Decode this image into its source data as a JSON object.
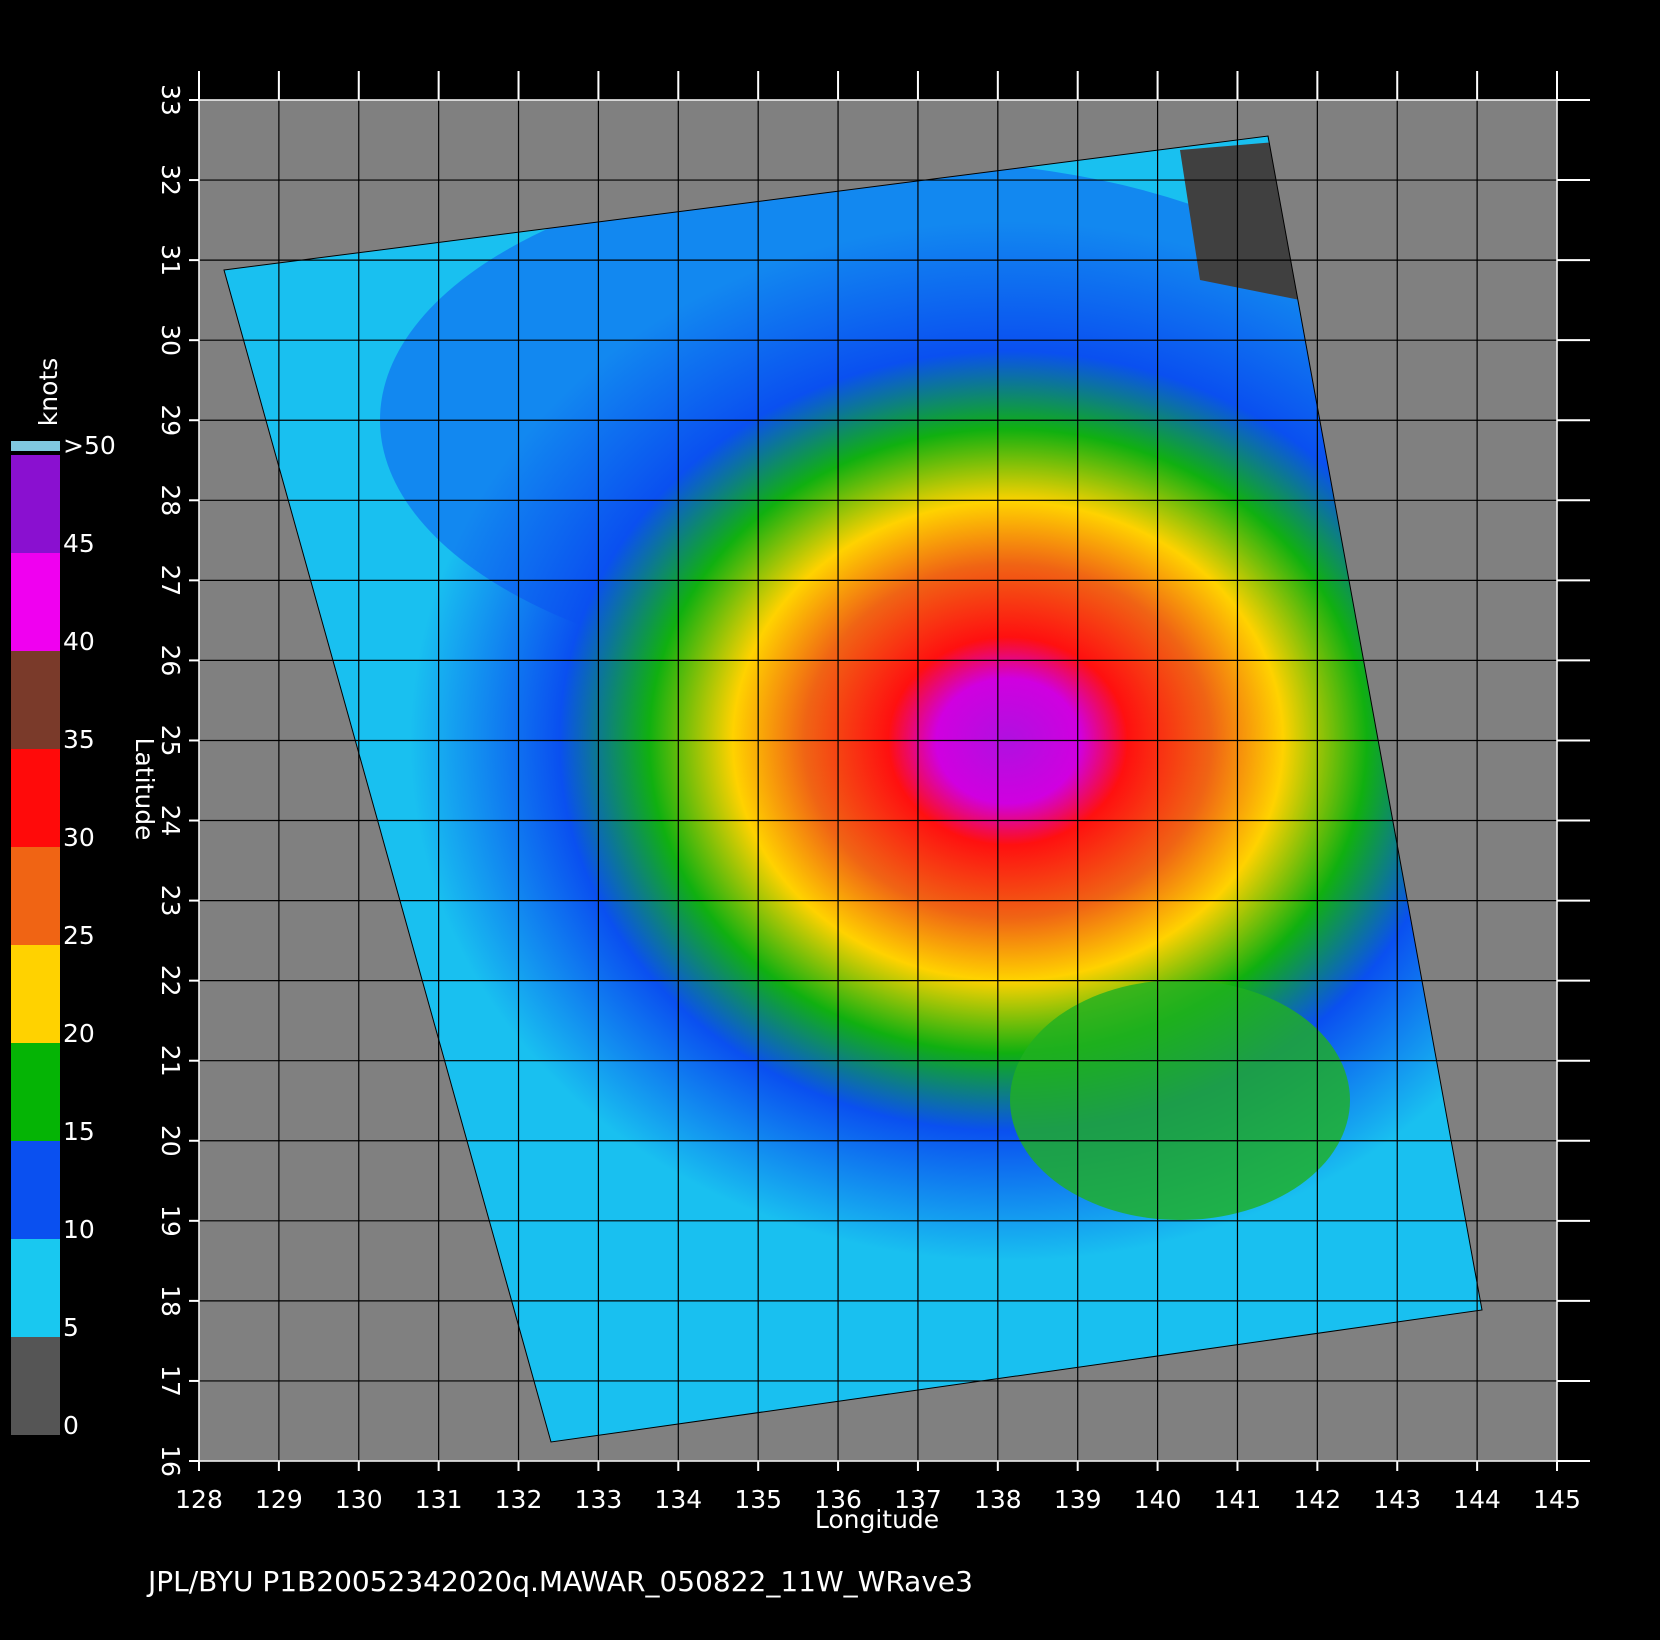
{
  "chart_data": {
    "type": "swath-map",
    "xlabel": "Longitude",
    "ylabel": "Latitude",
    "xlim": [
      128,
      145
    ],
    "xticks": [
      128,
      129,
      130,
      131,
      132,
      133,
      134,
      135,
      136,
      137,
      138,
      139,
      140,
      141,
      142,
      143,
      144,
      145
    ],
    "ylim": [
      16,
      33
    ],
    "yticks": [
      16,
      17,
      18,
      19,
      20,
      21,
      22,
      23,
      24,
      25,
      26,
      27,
      28,
      29,
      30,
      31,
      32,
      33
    ],
    "grid": true,
    "colorbar": {
      "label": "knots",
      "lim": [
        0,
        50
      ],
      "ticks": [
        0,
        5,
        10,
        15,
        20,
        25,
        30,
        35,
        40,
        45,
        {
          "value": 50,
          "label": ">50"
        }
      ],
      "colors": [
        "#555555",
        "#19c8f0",
        "#0a50f0",
        "#05b405",
        "#ffd200",
        "#f06414",
        "#ff0a0a",
        "#7a3a2a",
        "#f000f0",
        "#8a10d0"
      ]
    },
    "footer": "JPL/BYU  P1B20052342020q.MAWAR_050822_11W_WRave3"
  }
}
